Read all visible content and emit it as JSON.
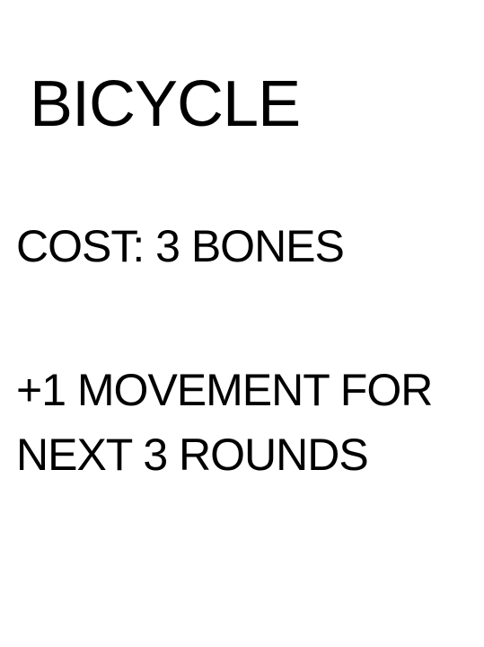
{
  "card": {
    "title": "BICYCLE",
    "cost": "COST: 3 BONES",
    "effect_lines": [
      "+1 MOVEMENT FOR",
      "NEXT 3 ROUNDS"
    ]
  },
  "colors": {
    "background": "#ffffff",
    "text": "#000000"
  }
}
